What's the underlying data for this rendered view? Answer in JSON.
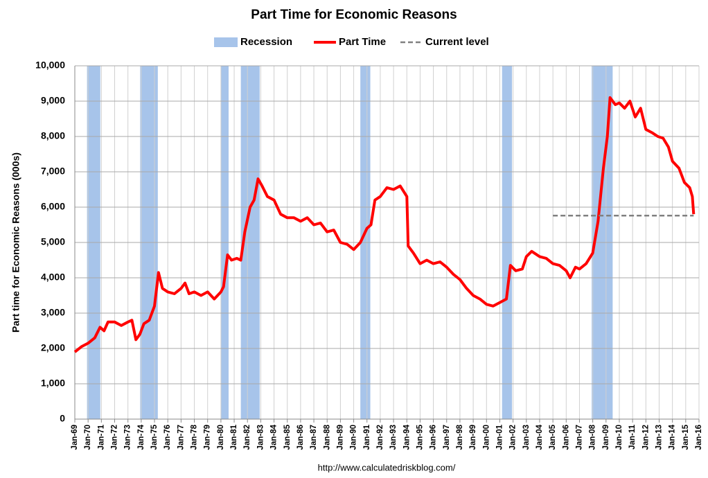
{
  "chart_data": {
    "type": "line",
    "title": "Part Time for Economic Reasons",
    "y_label": "Part time for Economic Reasons (000s)",
    "source": "http://www.calculatedriskblog.com/",
    "grid": true,
    "xlim": [
      1969,
      2016
    ],
    "ylim": [
      0,
      10000
    ],
    "yticks": [
      0,
      {
        "value": 1000,
        "label": "1,000"
      },
      {
        "value": 2000,
        "label": "2,000"
      },
      {
        "value": 3000,
        "label": "3,000"
      },
      {
        "value": 4000,
        "label": "4,000"
      },
      {
        "value": 5000,
        "label": "5,000"
      },
      {
        "value": 6000,
        "label": "6,000"
      },
      {
        "value": 7000,
        "label": "7,000"
      },
      {
        "value": 8000,
        "label": "8,000"
      },
      {
        "value": 9000,
        "label": "9,000"
      },
      {
        "value": 10000,
        "label": "10,000"
      }
    ],
    "xticks": [
      {
        "value": 1969,
        "label": "Jan-69"
      },
      {
        "value": 1970,
        "label": "Jan-70"
      },
      {
        "value": 1971,
        "label": "Jan-71"
      },
      {
        "value": 1972,
        "label": "Jan-72"
      },
      {
        "value": 1973,
        "label": "Jan-73"
      },
      {
        "value": 1974,
        "label": "Jan-74"
      },
      {
        "value": 1975,
        "label": "Jan-75"
      },
      {
        "value": 1976,
        "label": "Jan-76"
      },
      {
        "value": 1977,
        "label": "Jan-77"
      },
      {
        "value": 1978,
        "label": "Jan-78"
      },
      {
        "value": 1979,
        "label": "Jan-79"
      },
      {
        "value": 1980,
        "label": "Jan-80"
      },
      {
        "value": 1981,
        "label": "Jan-81"
      },
      {
        "value": 1982,
        "label": "Jan-82"
      },
      {
        "value": 1983,
        "label": "Jan-83"
      },
      {
        "value": 1984,
        "label": "Jan-84"
      },
      {
        "value": 1985,
        "label": "Jan-85"
      },
      {
        "value": 1986,
        "label": "Jan-86"
      },
      {
        "value": 1987,
        "label": "Jan-87"
      },
      {
        "value": 1988,
        "label": "Jan-88"
      },
      {
        "value": 1989,
        "label": "Jan-89"
      },
      {
        "value": 1990,
        "label": "Jan-90"
      },
      {
        "value": 1991,
        "label": "Jan-91"
      },
      {
        "value": 1992,
        "label": "Jan-92"
      },
      {
        "value": 1993,
        "label": "Jan-93"
      },
      {
        "value": 1994,
        "label": "Jan-94"
      },
      {
        "value": 1995,
        "label": "Jan-95"
      },
      {
        "value": 1996,
        "label": "Jan-96"
      },
      {
        "value": 1997,
        "label": "Jan-97"
      },
      {
        "value": 1998,
        "label": "Jan-98"
      },
      {
        "value": 1999,
        "label": "Jan-99"
      },
      {
        "value": 2000,
        "label": "Jan-00"
      },
      {
        "value": 2001,
        "label": "Jan-01"
      },
      {
        "value": 2002,
        "label": "Jan-02"
      },
      {
        "value": 2003,
        "label": "Jan-03"
      },
      {
        "value": 2004,
        "label": "Jan-04"
      },
      {
        "value": 2005,
        "label": "Jan-05"
      },
      {
        "value": 2006,
        "label": "Jan-06"
      },
      {
        "value": 2007,
        "label": "Jan-07"
      },
      {
        "value": 2008,
        "label": "Jan-08"
      },
      {
        "value": 2009,
        "label": "Jan-09"
      },
      {
        "value": 2010,
        "label": "Jan-10"
      },
      {
        "value": 2011,
        "label": "Jan-11"
      },
      {
        "value": 2012,
        "label": "Jan-12"
      },
      {
        "value": 2013,
        "label": "Jan-13"
      },
      {
        "value": 2014,
        "label": "Jan-14"
      },
      {
        "value": 2015,
        "label": "Jan-15"
      },
      {
        "value": 2016,
        "label": "Jan-16"
      }
    ],
    "recessions": {
      "name": "Recession",
      "color": "#a7c4ea",
      "spans": [
        [
          1969.92,
          1970.92
        ],
        [
          1973.92,
          1975.25
        ],
        [
          1980.0,
          1980.58
        ],
        [
          1981.5,
          1982.92
        ],
        [
          1990.5,
          1991.25
        ],
        [
          2001.17,
          2001.92
        ],
        [
          2007.92,
          2009.5
        ]
      ]
    },
    "series": [
      {
        "name": "Part Time",
        "color": "#ff0000",
        "x": [
          1969.0,
          1969.5,
          1970.0,
          1970.5,
          1970.9,
          1971.2,
          1971.5,
          1972.0,
          1972.5,
          1973.0,
          1973.3,
          1973.6,
          1973.9,
          1974.2,
          1974.6,
          1975.0,
          1975.3,
          1975.6,
          1976.0,
          1976.5,
          1977.0,
          1977.3,
          1977.6,
          1978.0,
          1978.5,
          1979.0,
          1979.5,
          1980.0,
          1980.2,
          1980.5,
          1980.8,
          1981.2,
          1981.5,
          1981.8,
          1982.2,
          1982.5,
          1982.8,
          1983.1,
          1983.5,
          1984.0,
          1984.5,
          1985.0,
          1985.5,
          1986.0,
          1986.5,
          1987.0,
          1987.5,
          1988.0,
          1988.5,
          1989.0,
          1989.5,
          1990.0,
          1990.5,
          1991.0,
          1991.3,
          1991.6,
          1992.0,
          1992.5,
          1993.0,
          1993.5,
          1994.0,
          1994.1,
          1994.5,
          1995.0,
          1995.5,
          1996.0,
          1996.5,
          1997.0,
          1997.5,
          1998.0,
          1998.5,
          1999.0,
          1999.5,
          2000.0,
          2000.5,
          2001.0,
          2001.5,
          2001.8,
          2002.2,
          2002.7,
          2003.0,
          2003.4,
          2004.0,
          2004.5,
          2005.0,
          2005.5,
          2006.0,
          2006.3,
          2006.7,
          2007.0,
          2007.5,
          2008.0,
          2008.4,
          2008.8,
          2009.1,
          2009.3,
          2009.7,
          2010.0,
          2010.4,
          2010.8,
          2011.2,
          2011.6,
          2012.0,
          2012.5,
          2012.9,
          2013.3,
          2013.7,
          2014.0,
          2014.5,
          2014.9,
          2015.3,
          2015.5,
          2015.6
        ],
        "values": [
          1900,
          2050,
          2150,
          2300,
          2600,
          2500,
          2750,
          2750,
          2650,
          2750,
          2800,
          2250,
          2400,
          2700,
          2800,
          3200,
          4150,
          3700,
          3600,
          3550,
          3700,
          3850,
          3550,
          3600,
          3500,
          3600,
          3400,
          3600,
          3750,
          4650,
          4500,
          4550,
          4500,
          5300,
          6000,
          6200,
          6800,
          6600,
          6300,
          6200,
          5800,
          5700,
          5700,
          5600,
          5700,
          5500,
          5550,
          5300,
          5350,
          5000,
          4950,
          4800,
          5000,
          5400,
          5500,
          6200,
          6300,
          6550,
          6500,
          6600,
          6300,
          4900,
          4700,
          4400,
          4500,
          4400,
          4450,
          4300,
          4100,
          3950,
          3700,
          3500,
          3400,
          3250,
          3200,
          3300,
          3400,
          4350,
          4200,
          4250,
          4600,
          4750,
          4600,
          4550,
          4400,
          4350,
          4200,
          4000,
          4300,
          4250,
          4400,
          4700,
          5600,
          7100,
          8000,
          9100,
          8900,
          8950,
          8800,
          9000,
          8550,
          8800,
          8200,
          8100,
          8000,
          7950,
          7700,
          7300,
          7100,
          6700,
          6550,
          6300,
          5800
        ]
      },
      {
        "name": "Current level",
        "color": "#808080",
        "dashed": true,
        "x": [
          2005.0,
          2015.6
        ],
        "values": [
          5760,
          5760
        ]
      }
    ]
  }
}
